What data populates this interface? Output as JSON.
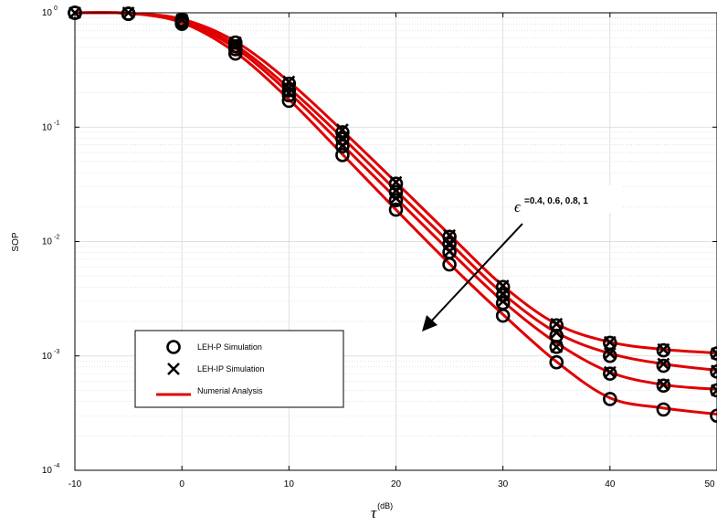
{
  "chart_data": {
    "type": "line",
    "ylabel": "SOP",
    "xlabel": {
      "symbol": "τ",
      "unit": "(dB)"
    },
    "xlim": [
      -10,
      50
    ],
    "ylim": [
      0.0001,
      1
    ],
    "yscale": "log",
    "grid": true,
    "xticks": [
      "-10",
      "0",
      "10",
      "20",
      "30",
      "40",
      "50"
    ],
    "yticks": [
      {
        "base": "10",
        "exp": "0"
      },
      {
        "base": "10",
        "exp": "-1"
      },
      {
        "base": "10",
        "exp": "-2"
      },
      {
        "base": "10",
        "exp": "-3"
      },
      {
        "base": "10",
        "exp": "-4"
      }
    ],
    "annotation": {
      "symbol": "ϵ",
      "text": "=0.4, 0.6, 0.8, 1"
    },
    "legend": {
      "placement": "lower-left",
      "entries": [
        {
          "label": "LEH-P   Simulation",
          "marker": "circle"
        },
        {
          "label": "LEH-IP   Simulation",
          "marker": "cross"
        },
        {
          "label": "Numerial Analysis",
          "marker": "line",
          "color": "#e00000"
        }
      ]
    },
    "line_color": "#e00000",
    "x": [
      -10,
      -5,
      0,
      5,
      10,
      15,
      20,
      25,
      30,
      35,
      40,
      45,
      50
    ],
    "series": [
      {
        "epsilon": "0.4",
        "analysis": [
          1.0,
          0.99,
          0.82,
          0.45,
          0.175,
          0.058,
          0.019,
          0.0064,
          0.0023,
          0.00089,
          0.00043,
          0.00035,
          0.00031
        ],
        "simulation_P": [
          1.0,
          0.98,
          0.8,
          0.44,
          0.17,
          0.057,
          0.019,
          0.0063,
          0.00225,
          0.00088,
          0.00042,
          0.00034,
          0.0003
        ]
      },
      {
        "epsilon": "0.6",
        "analysis": [
          1.0,
          0.99,
          0.84,
          0.49,
          0.2,
          0.07,
          0.024,
          0.0083,
          0.003,
          0.0013,
          0.00072,
          0.00056,
          0.00051
        ],
        "simulation_P": [
          1.0,
          0.98,
          0.83,
          0.48,
          0.19,
          0.068,
          0.023,
          0.0081,
          0.0029,
          0.0012,
          0.0007,
          0.00055,
          0.0005
        ]
      },
      {
        "epsilon": "0.8",
        "analysis": [
          1.0,
          0.99,
          0.86,
          0.52,
          0.22,
          0.081,
          0.028,
          0.0098,
          0.0035,
          0.0016,
          0.00105,
          0.00085,
          0.00075
        ],
        "simulation_P": [
          1.0,
          0.98,
          0.85,
          0.51,
          0.21,
          0.079,
          0.027,
          0.0095,
          0.0034,
          0.0015,
          0.001,
          0.00082,
          0.00073
        ]
      },
      {
        "epsilon": "1",
        "analysis": [
          1.0,
          0.99,
          0.88,
          0.56,
          0.25,
          0.093,
          0.033,
          0.0115,
          0.0041,
          0.0019,
          0.00132,
          0.00114,
          0.00106
        ],
        "simulation_P": [
          1.0,
          0.98,
          0.87,
          0.55,
          0.24,
          0.09,
          0.032,
          0.011,
          0.004,
          0.00185,
          0.0013,
          0.00112,
          0.00105
        ]
      }
    ],
    "simulation_IP_markers": [
      {
        "x": -10,
        "y": [
          1.0
        ]
      },
      {
        "x": -5,
        "y": [
          1.0
        ]
      },
      {
        "x": 0,
        "y": [
          0.87
        ]
      },
      {
        "x": 5,
        "y": [
          0.51,
          0.55
        ]
      },
      {
        "x": 10,
        "y": [
          0.2,
          0.22,
          0.25
        ]
      },
      {
        "x": 15,
        "y": [
          0.069,
          0.081,
          0.095
        ]
      },
      {
        "x": 20,
        "y": [
          0.024,
          0.028,
          0.033
        ]
      },
      {
        "x": 25,
        "y": [
          0.0082,
          0.0097,
          0.0113
        ]
      },
      {
        "x": 30,
        "y": [
          0.003,
          0.0035,
          0.0041
        ]
      },
      {
        "x": 35,
        "y": [
          0.0012,
          0.0016,
          0.0019
        ]
      },
      {
        "x": 40,
        "y": [
          0.00072,
          0.00105,
          0.00132
        ]
      },
      {
        "x": 45,
        "y": [
          0.00056,
          0.00085,
          0.00114
        ]
      },
      {
        "x": 50,
        "y": [
          0.0005,
          0.00074,
          0.00105
        ]
      }
    ]
  }
}
